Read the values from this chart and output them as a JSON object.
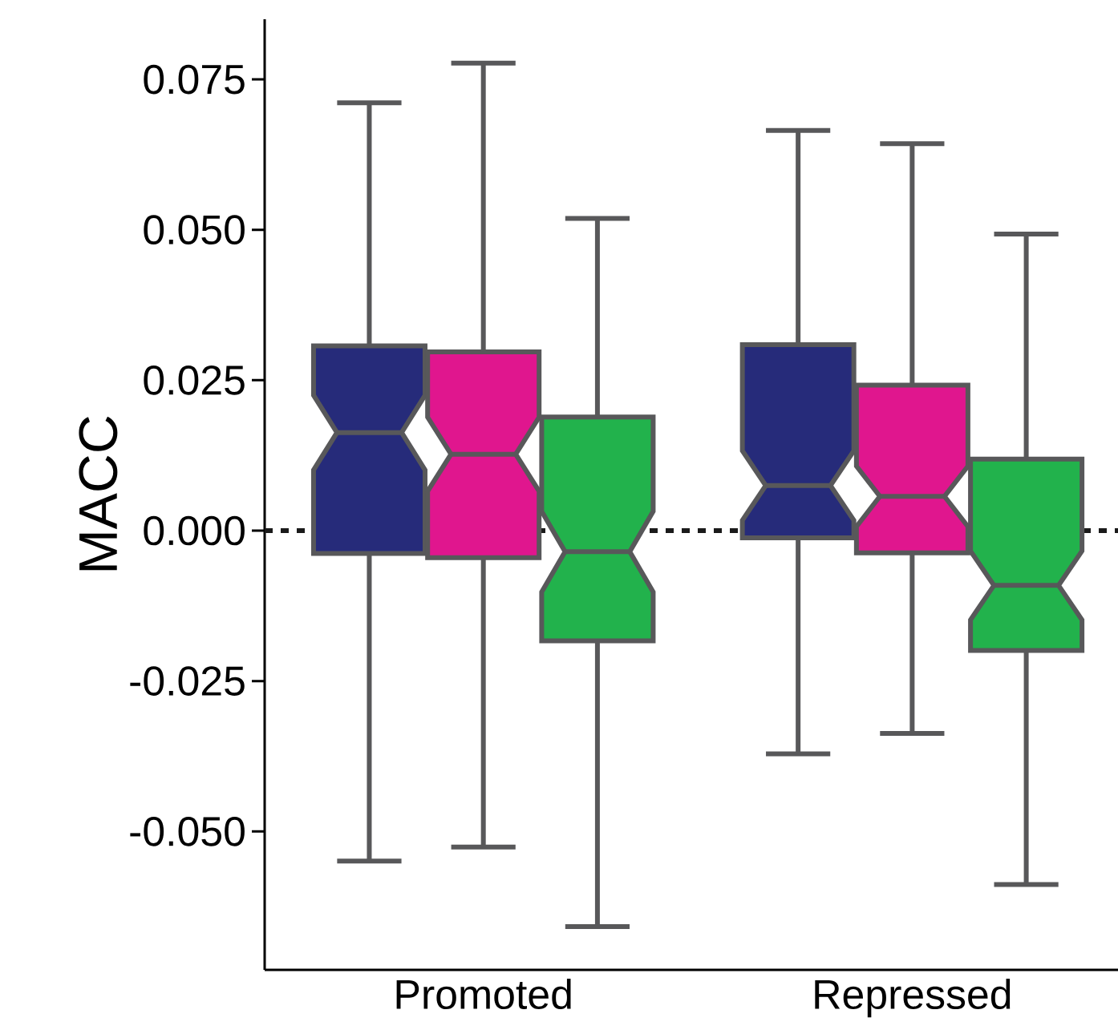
{
  "chart_data": {
    "type": "box",
    "ylabel": "MACC",
    "categories": [
      "Promoted",
      "Repressed"
    ],
    "series": [
      {
        "color": "#262b7a",
        "boxes": [
          {
            "low": -0.0549,
            "q1": -0.0038,
            "median": 0.0163,
            "q3": 0.0307,
            "high": 0.0711
          },
          {
            "low": -0.0371,
            "q1": -0.0012,
            "median": 0.0075,
            "q3": 0.0309,
            "high": 0.0665
          }
        ]
      },
      {
        "color": "#e0168e",
        "boxes": [
          {
            "low": -0.0526,
            "q1": -0.0045,
            "median": 0.0127,
            "q3": 0.0297,
            "high": 0.0777
          },
          {
            "low": -0.0337,
            "q1": -0.0037,
            "median": 0.0057,
            "q3": 0.0242,
            "high": 0.0643
          }
        ]
      },
      {
        "color": "#22b24c",
        "boxes": [
          {
            "low": -0.0658,
            "q1": -0.0183,
            "median": -0.0035,
            "q3": 0.0189,
            "high": 0.0519
          },
          {
            "low": -0.0588,
            "q1": -0.0199,
            "median": -0.0091,
            "q3": 0.0119,
            "high": 0.0493
          }
        ]
      }
    ],
    "ylim": [
      -0.073,
      0.085
    ],
    "yticks": [
      {
        "value": -0.05,
        "label": "-0.050"
      },
      -0.025,
      {
        "value": 0,
        "label": "0.000"
      },
      0.025,
      {
        "value": 0.05,
        "label": "0.050"
      },
      0.075
    ],
    "ref_lines": [
      {
        "axis": "y",
        "value": 0,
        "line_style": "dotted",
        "color": "#1a1a1a"
      }
    ],
    "grid": false
  }
}
